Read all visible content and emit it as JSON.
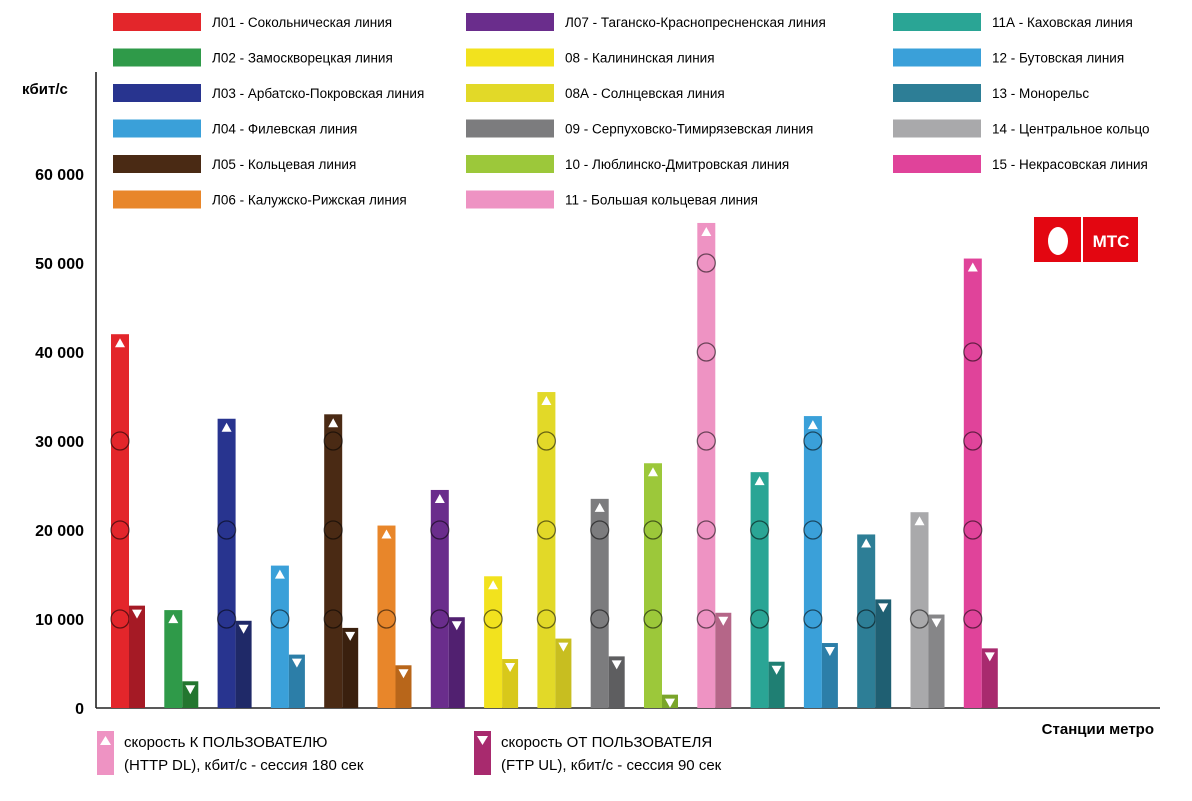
{
  "chart_data": {
    "type": "bar",
    "ylabel": "кбит/с",
    "xlabel": "Станции метро",
    "ylim": [
      0,
      62000
    ],
    "yticks": [
      0,
      10000,
      20000,
      30000,
      40000,
      50000,
      60000
    ],
    "ytick_labels": [
      "0",
      "10 000",
      "20 000",
      "30 000",
      "40 000",
      "50 000",
      "60 000"
    ],
    "grid": false,
    "legend_position": "top",
    "categories": [
      "Л01 - Сокольническая линия",
      "Л02 - Замоскворецкая линия",
      "Л03 - Арбатско-Покровская линия",
      "Л04 - Филевская линия",
      "Л05 - Кольцевая линия",
      "Л06 - Калужско-Рижская линия",
      "Л07 - Таганско-Краснопресненская линия",
      "08 - Калининская линия",
      "08А - Солнцевская линия",
      "09 - Серпуховско-Тимирязевская линия",
      "10 - Люблинско-Дмитровская линия",
      "11 - Большая кольцевая линия",
      "11А - Каховская линия",
      "12 - Бутовская линия",
      "13 - Монорельс",
      "14 - Центральное кольцо",
      "15 - Некрасовская линия"
    ],
    "colors": [
      "#e3262b",
      "#2f9a49",
      "#28348f",
      "#3aa0d9",
      "#4a2a14",
      "#e8862a",
      "#6a2d8c",
      "#f2e21e",
      "#e2d928",
      "#7c7c7e",
      "#9cc83a",
      "#ee93c3",
      "#2aa595",
      "#3aa0d9",
      "#2d7e96",
      "#a9a9ab",
      "#e0439a"
    ],
    "ul_colors": [
      "#a51a25",
      "#23762f",
      "#1f2968",
      "#2c7ea8",
      "#3a200e",
      "#b8661a",
      "#512070",
      "#d8c81a",
      "#c8be20",
      "#5e5e60",
      "#7aa52a",
      "#b56688",
      "#1f7f73",
      "#2c7ea8",
      "#1f5f72",
      "#868688",
      "#a82a6e"
    ],
    "series": [
      {
        "name": "скорость К ПОЛЬЗОВАТЕЛЮ (HTTP DL), кбит/с - сессия 180 сек",
        "values": [
          42000,
          11000,
          32500,
          16000,
          33000,
          20500,
          24500,
          14800,
          35500,
          23500,
          27500,
          54500,
          26500,
          32800,
          19500,
          22000,
          50500
        ]
      },
      {
        "name": "скорость ОТ ПОЛЬЗОВАТЕЛЯ (FTP UL), кбит/с - сессия 90 сек",
        "values": [
          11500,
          3000,
          9800,
          6000,
          9000,
          4800,
          10200,
          5500,
          7800,
          5800,
          1500,
          10700,
          5200,
          7300,
          12200,
          10500,
          6700
        ]
      }
    ]
  },
  "legend": {
    "dl_line1": "скорость К ПОЛЬЗОВАТЕЛЮ",
    "dl_line2": "(HTTP DL), кбит/с - сессия 180 сек",
    "ul_line1": "скорость ОТ ПОЛЬЗОВАТЕЛЯ",
    "ul_line2": "(FTP UL), кбит/с - сессия 90 сек"
  },
  "logo": {
    "text": "МТС",
    "color": "#e30611"
  }
}
